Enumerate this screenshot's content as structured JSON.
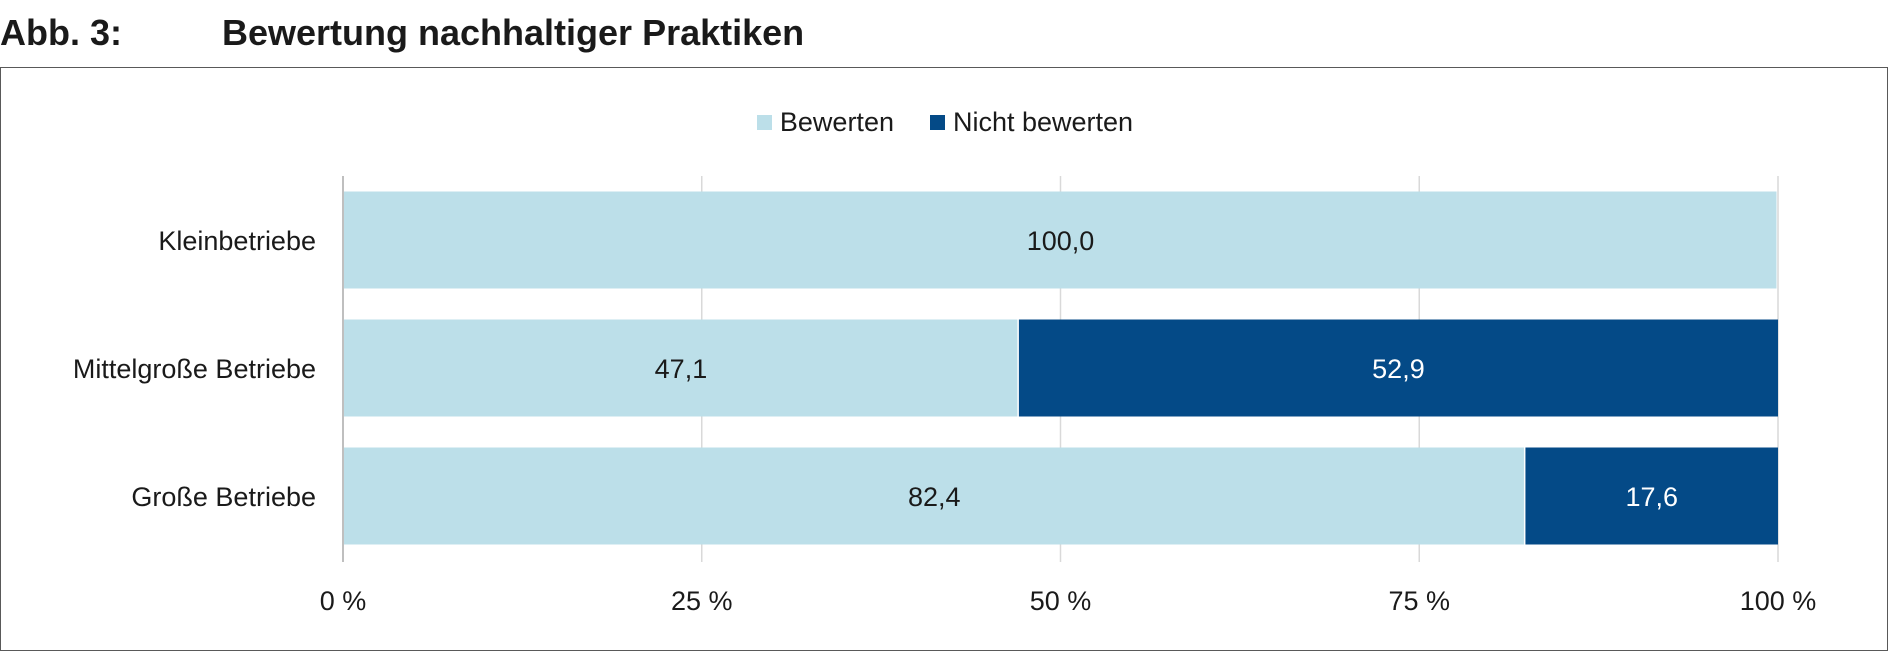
{
  "figure": {
    "number": "Abb. 3:",
    "title": "Bewertung nachhaltiger Praktiken"
  },
  "chart_data": {
    "type": "bar",
    "orientation": "horizontal",
    "stacked": true,
    "title": "Bewertung nachhaltiger Praktiken",
    "categories": [
      "Kleinbetriebe",
      "Mittelgroße Betriebe",
      "Große Betriebe"
    ],
    "series": [
      {
        "name": "Bewerten",
        "values": [
          100.0,
          47.1,
          82.4
        ],
        "labels": [
          "100,0",
          "47,1",
          "82,4"
        ],
        "color": "#bcdfe9",
        "label_color": "#1a1a1a"
      },
      {
        "name": "Nicht bewerten",
        "values": [
          0,
          52.9,
          17.6
        ],
        "labels": [
          "",
          "52,9",
          "17,6"
        ],
        "color": "#044a87",
        "label_color": "#ffffff"
      }
    ],
    "xlim": [
      0,
      100
    ],
    "x_ticks": [
      0,
      25,
      50,
      75,
      100
    ],
    "x_tick_labels": [
      "0 %",
      "25 %",
      "50 %",
      "75 %",
      "100 %"
    ],
    "grid": true,
    "legend_position": "top-center",
    "xlabel": "",
    "ylabel": ""
  }
}
